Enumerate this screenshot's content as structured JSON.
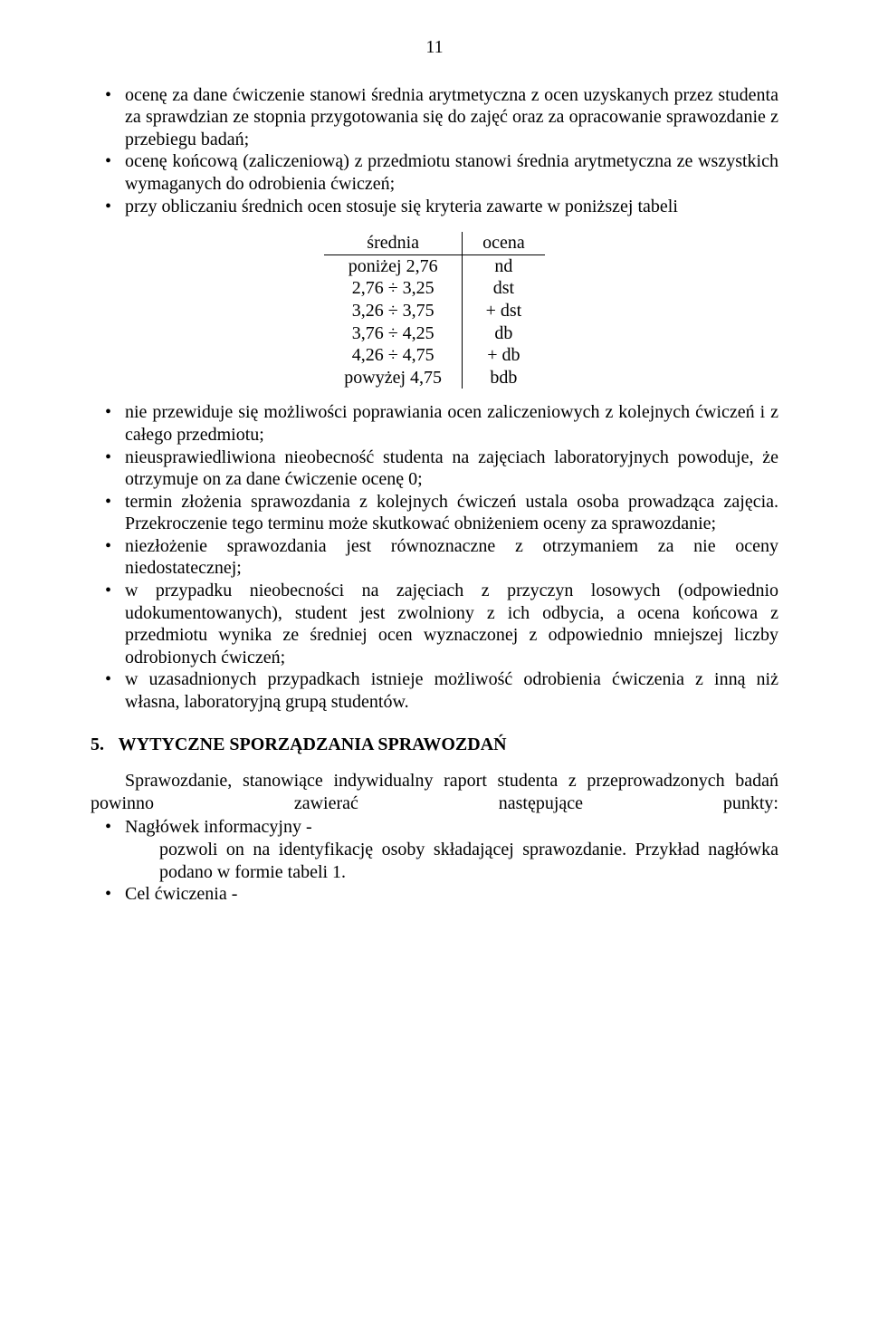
{
  "page_number": "11",
  "bullets_top": [
    "ocenę za dane ćwiczenie stanowi średnia arytmetyczna z ocen uzyskanych przez studenta za sprawdzian ze stopnia przygotowania się do zajęć oraz za opracowanie sprawozdanie z przebiegu badań;",
    "ocenę końcową (zaliczeniową) z przedmiotu stanowi średnia arytmetyczna ze wszystkich wymaganych do odrobienia ćwiczeń;",
    "przy obliczaniu średnich ocen stosuje się kryteria zawarte w poniższej tabeli"
  ],
  "grade_table": {
    "header": {
      "left": "średnia",
      "right": "ocena"
    },
    "rows": [
      {
        "left": "poniżej 2,76",
        "right": "nd"
      },
      {
        "left": "2,76 ÷ 3,25",
        "right": "dst"
      },
      {
        "left": "3,26 ÷ 3,75",
        "right": "+ dst"
      },
      {
        "left": "3,76 ÷ 4,25",
        "right": "db"
      },
      {
        "left": "4,26 ÷ 4,75",
        "right": "+ db"
      },
      {
        "left": "powyżej 4,75",
        "right": "bdb"
      }
    ]
  },
  "bullets_mid": [
    "nie przewiduje się możliwości poprawiania ocen zaliczeniowych z kolejnych ćwiczeń i z całego przedmiotu;",
    "nieusprawiedliwiona nieobecność studenta na zajęciach laboratoryjnych powoduje, że otrzymuje on za dane ćwiczenie ocenę 0;",
    "termin złożenia sprawozdania z kolejnych ćwiczeń ustala osoba prowadząca zajęcia. Przekroczenie tego terminu może skutkować obniżeniem oceny za sprawozdanie;",
    "niezłożenie sprawozdania jest równoznaczne z otrzymaniem za nie oceny niedostatecznej;",
    "w przypadku nieobecności na zajęciach z przyczyn losowych (odpowiednio udokumentowanych), student jest zwolniony z ich odbycia, a ocena końcowa z przedmiotu wynika ze średniej ocen wyznaczonej z odpowiednio mniejszej liczby odrobionych ćwiczeń;",
    "w uzasadnionych przypadkach istnieje możliwość odrobienia ćwiczenia z inną niż własna, laboratoryjną grupą studentów."
  ],
  "section": {
    "number": "5.",
    "title": "WYTYCZNE SPORZĄDZANIA SPRAWOZDAŃ"
  },
  "after_section_para": "Sprawozdanie, stanowiące indywidualny raport studenta z przeprowadzonych badań powinno zawierać następujące punkty:",
  "bullets_bottom": [
    {
      "title": "Nagłówek informacyjny -",
      "body": "pozwoli on na identyfikację osoby składającej sprawozdanie. Przykład nagłówka podano w formie tabeli 1."
    },
    {
      "title": "Cel ćwiczenia -",
      "body": ""
    }
  ]
}
